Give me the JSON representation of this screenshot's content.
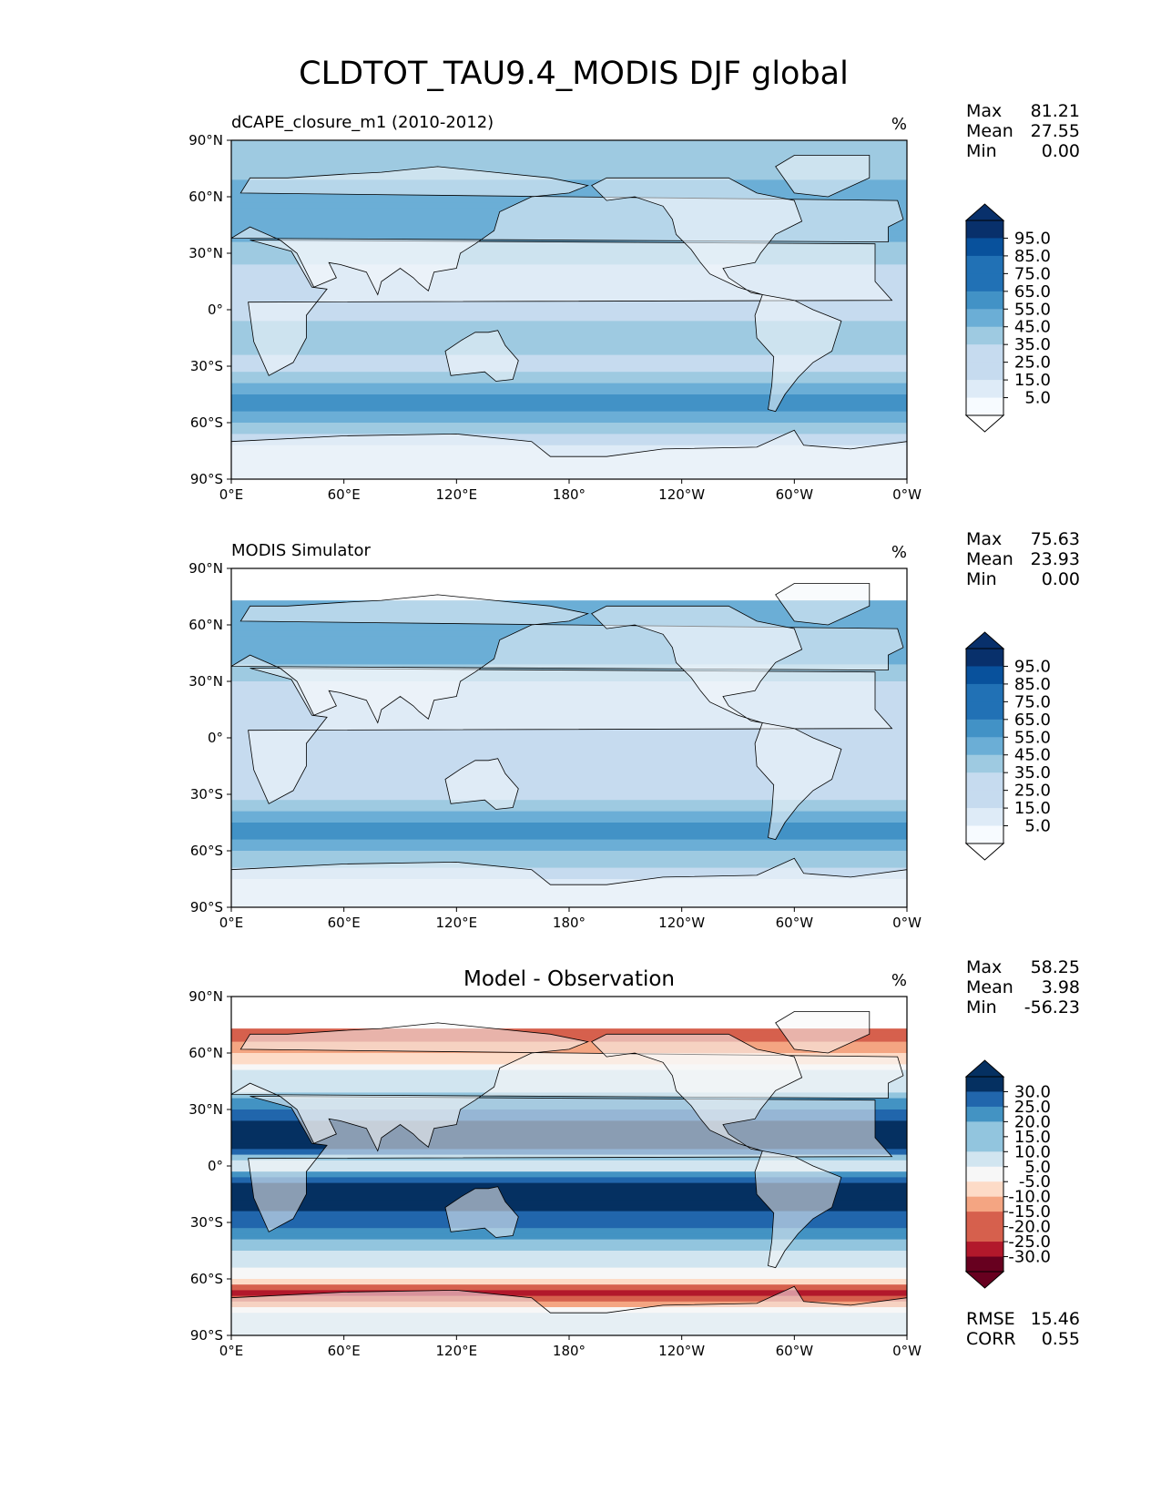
{
  "figure_title": "CLDTOT_TAU9.4_MODIS DJF global",
  "colors": {
    "blues": [
      "#f7fbff",
      "#deebf7",
      "#c6dbef",
      "#9ecae1",
      "#6baed6",
      "#4292c6",
      "#2171b5",
      "#08519c",
      "#08306b"
    ],
    "diff": [
      "#67001f",
      "#b2182b",
      "#d6604d",
      "#f4a582",
      "#fddbc7",
      "#f7f7f7",
      "#d1e5f0",
      "#92c5de",
      "#4393c3",
      "#2166ac",
      "#053061"
    ],
    "land": "#ffffff",
    "coast": "#000000"
  },
  "panels": [
    {
      "title_left": "dCAPE_closure_m1 (2010-2012)",
      "title_center": "",
      "units": "%",
      "stats": [
        {
          "label": "Max",
          "value": "81.21"
        },
        {
          "label": "Mean",
          "value": "27.55"
        },
        {
          "label": "Min",
          "value": "0.00"
        }
      ],
      "colorbar_ticks": [
        "95.0",
        "85.0",
        "75.0",
        "65.0",
        "55.0",
        "45.0",
        "35.0",
        "25.0",
        "15.0",
        "5.0"
      ],
      "lat_ticks": [
        "90°N",
        "60°N",
        "30°N",
        "0°",
        "30°S",
        "60°S",
        "90°S"
      ],
      "lon_ticks": [
        "0°E",
        "60°E",
        "120°E",
        "180°",
        "120°W",
        "60°W",
        "0°W"
      ]
    },
    {
      "title_left": "MODIS Simulator",
      "title_center": "",
      "units": "%",
      "stats": [
        {
          "label": "Max",
          "value": "75.63"
        },
        {
          "label": "Mean",
          "value": "23.93"
        },
        {
          "label": "Min",
          "value": "0.00"
        }
      ],
      "colorbar_ticks": [
        "95.0",
        "85.0",
        "75.0",
        "65.0",
        "55.0",
        "45.0",
        "35.0",
        "25.0",
        "15.0",
        "5.0"
      ],
      "lat_ticks": [
        "90°N",
        "60°N",
        "30°N",
        "0°",
        "30°S",
        "60°S",
        "90°S"
      ],
      "lon_ticks": [
        "0°E",
        "60°E",
        "120°E",
        "180°",
        "120°W",
        "60°W",
        "0°W"
      ]
    },
    {
      "title_left": "",
      "title_center": "Model - Observation",
      "units": "%",
      "stats": [
        {
          "label": "Max",
          "value": "58.25"
        },
        {
          "label": "Mean",
          "value": "3.98"
        },
        {
          "label": "Min",
          "value": "-56.23"
        }
      ],
      "colorbar_ticks": [
        "30.0",
        "25.0",
        "20.0",
        "15.0",
        "10.0",
        "5.0",
        "-5.0",
        "-10.0",
        "-15.0",
        "-20.0",
        "-25.0",
        "-30.0"
      ],
      "lat_ticks": [
        "90°N",
        "60°N",
        "30°N",
        "0°",
        "30°S",
        "60°S",
        "90°S"
      ],
      "lon_ticks": [
        "0°E",
        "60°E",
        "120°E",
        "180°",
        "120°W",
        "60°W",
        "0°W"
      ],
      "metrics": [
        {
          "label": "RMSE",
          "value": "15.46"
        },
        {
          "label": "CORR",
          "value": "0.55"
        }
      ]
    }
  ],
  "chart_data": [
    {
      "type": "heatmap",
      "title": "dCAPE_closure_m1 (2010-2012)",
      "units": "%",
      "xlim": [
        0,
        360
      ],
      "ylim": [
        -90,
        90
      ],
      "levels": [
        0,
        5,
        15,
        25,
        35,
        45,
        55,
        65,
        75,
        85,
        95,
        100
      ],
      "stats": {
        "max": 81.21,
        "mean": 27.55,
        "min": 0.0
      },
      "zonal_profile": [
        {
          "lat": 75,
          "value": 30
        },
        {
          "lat": 60,
          "value": 40
        },
        {
          "lat": 45,
          "value": 40
        },
        {
          "lat": 30,
          "value": 30
        },
        {
          "lat": 15,
          "value": 18
        },
        {
          "lat": 0,
          "value": 22
        },
        {
          "lat": -15,
          "value": 30
        },
        {
          "lat": -30,
          "value": 22
        },
        {
          "lat": -50,
          "value": 55
        },
        {
          "lat": -65,
          "value": 25
        },
        {
          "lat": -80,
          "value": 5
        }
      ]
    },
    {
      "type": "heatmap",
      "title": "MODIS Simulator",
      "units": "%",
      "xlim": [
        0,
        360
      ],
      "ylim": [
        -90,
        90
      ],
      "levels": [
        0,
        5,
        15,
        25,
        35,
        45,
        55,
        65,
        75,
        85,
        95,
        100
      ],
      "stats": {
        "max": 75.63,
        "mean": 23.93,
        "min": 0.0
      },
      "zonal_profile": [
        {
          "lat": 72,
          "value": 40
        },
        {
          "lat": 60,
          "value": 45
        },
        {
          "lat": 45,
          "value": 40
        },
        {
          "lat": 30,
          "value": 25
        },
        {
          "lat": 15,
          "value": 15
        },
        {
          "lat": 0,
          "value": 18
        },
        {
          "lat": -15,
          "value": 15
        },
        {
          "lat": -30,
          "value": 22
        },
        {
          "lat": -50,
          "value": 50
        },
        {
          "lat": -65,
          "value": 30
        },
        {
          "lat": -80,
          "value": 10
        }
      ]
    },
    {
      "type": "heatmap",
      "title": "Model - Observation",
      "units": "%",
      "xlim": [
        0,
        360
      ],
      "ylim": [
        -90,
        90
      ],
      "levels": [
        -100,
        -30,
        -25,
        -20,
        -15,
        -10,
        -5,
        5,
        10,
        15,
        20,
        25,
        30,
        100
      ],
      "stats": {
        "max": 58.25,
        "mean": 3.98,
        "min": -56.23,
        "rmse": 15.46,
        "corr": 0.55
      },
      "zonal_profile": [
        {
          "lat": 70,
          "value": -25
        },
        {
          "lat": 55,
          "value": -10
        },
        {
          "lat": 40,
          "value": 5
        },
        {
          "lat": 25,
          "value": 20
        },
        {
          "lat": 12,
          "value": 25
        },
        {
          "lat": 0,
          "value": 0
        },
        {
          "lat": -10,
          "value": 25
        },
        {
          "lat": -25,
          "value": 20
        },
        {
          "lat": -45,
          "value": 5
        },
        {
          "lat": -60,
          "value": -10
        },
        {
          "lat": -68,
          "value": -30
        },
        {
          "lat": -80,
          "value": 0
        }
      ]
    }
  ]
}
